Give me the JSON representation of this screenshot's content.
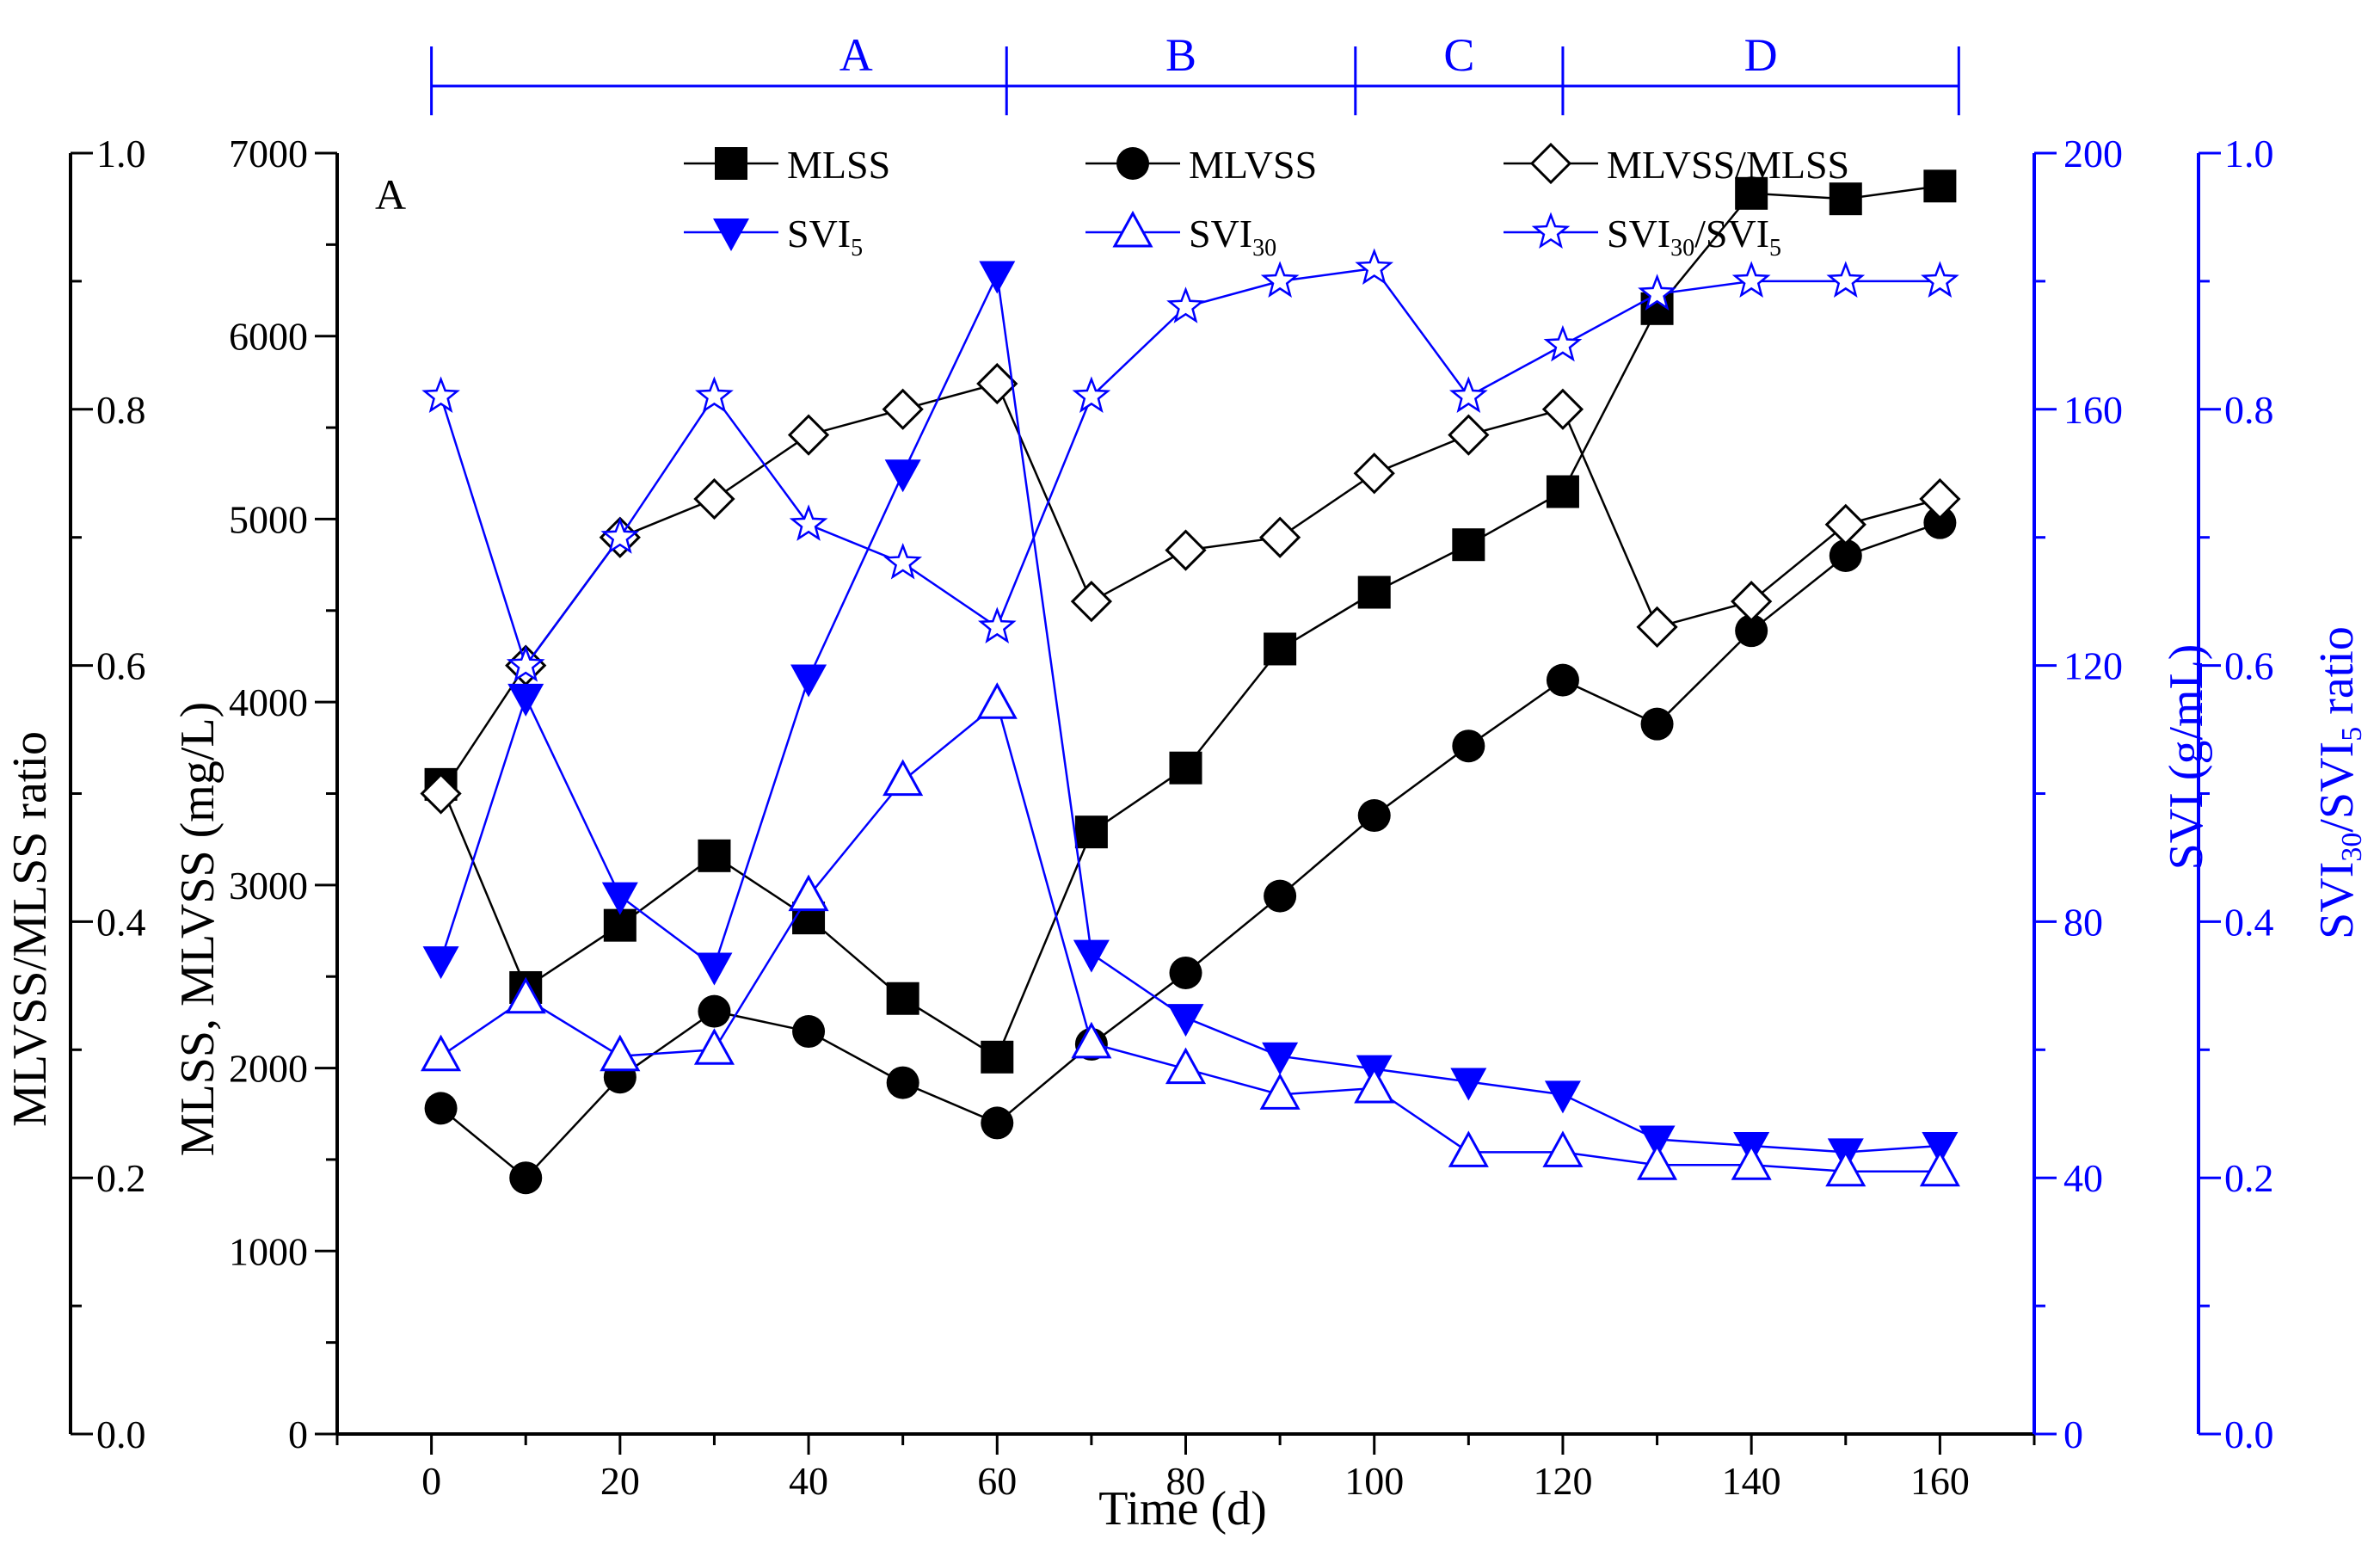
{
  "chart_data": {
    "type": "line",
    "panel_label": "A",
    "xlabel": "Time (d)",
    "xlim": [
      -10,
      170
    ],
    "x_ticks": [
      0,
      20,
      40,
      60,
      80,
      100,
      120,
      140,
      160
    ],
    "axes": {
      "left_inner": {
        "label": "MLSS, MLVSS (mg/L)",
        "ylim": [
          0,
          7000
        ],
        "ticks": [
          0,
          1000,
          2000,
          3000,
          4000,
          5000,
          6000,
          7000
        ],
        "color": "#000000"
      },
      "left_outer": {
        "label": "MLVSS/MLSS ratio",
        "ylim": [
          0.0,
          1.0
        ],
        "ticks": [
          "0.0",
          "0.2",
          "0.4",
          "0.6",
          "0.8",
          "1.0"
        ],
        "color": "#000000"
      },
      "right_inner": {
        "label": "SVI (g/mL)",
        "ylim": [
          0,
          200
        ],
        "ticks": [
          0,
          40,
          80,
          120,
          160,
          200
        ],
        "color": "#0000ff"
      },
      "right_outer": {
        "label_main": "SVI",
        "label_sub1": "30",
        "label_mid": "/SVI",
        "label_sub2": "5",
        "label_tail": " ratio",
        "ylim": [
          0.0,
          1.0
        ],
        "ticks": [
          "0.0",
          "0.2",
          "0.4",
          "0.6",
          "0.8",
          "1.0"
        ],
        "color": "#0000ff"
      }
    },
    "phases": [
      {
        "label": "A",
        "start": 0,
        "end": 61
      },
      {
        "label": "B",
        "start": 61,
        "end": 98
      },
      {
        "label": "C",
        "start": 98,
        "end": 120
      },
      {
        "label": "D",
        "start": 120,
        "end": 162
      }
    ],
    "x": [
      1,
      10,
      20,
      30,
      40,
      50,
      60,
      70,
      80,
      90,
      100,
      110,
      120,
      130,
      140,
      150,
      160
    ],
    "series": [
      {
        "name": "MLSS",
        "axis": "left_inner",
        "color": "#000000",
        "marker": "square-filled",
        "values": [
          3550,
          2440,
          2780,
          3160,
          2820,
          2380,
          2060,
          3290,
          3640,
          4290,
          4600,
          4860,
          5150,
          6150,
          6780,
          6750,
          6820
        ]
      },
      {
        "name": "MLVSS",
        "axis": "left_inner",
        "color": "#000000",
        "marker": "circle-filled",
        "values": [
          1780,
          1400,
          1950,
          2310,
          2200,
          1920,
          1700,
          2130,
          2520,
          2940,
          3380,
          3760,
          4120,
          3880,
          4390,
          4800,
          4980
        ]
      },
      {
        "name": "MLVSS/MLSS",
        "axis": "left_outer",
        "color": "#000000",
        "marker": "diamond-open",
        "values": [
          0.5,
          0.6,
          0.7,
          0.73,
          0.78,
          0.8,
          0.82,
          0.65,
          0.69,
          0.7,
          0.75,
          0.78,
          0.8,
          0.63,
          0.65,
          0.71,
          0.73
        ]
      },
      {
        "name": "SVI",
        "sub": "5",
        "axis": "right_inner",
        "color": "#0000ff",
        "marker": "triangle-down-filled",
        "values": [
          74,
          115,
          84,
          73,
          118,
          150,
          181,
          75,
          65,
          59,
          57,
          55,
          53,
          46,
          45,
          44,
          45
        ]
      },
      {
        "name": "SVI",
        "sub": "30",
        "axis": "right_inner",
        "color": "#0000ff",
        "marker": "triangle-up-open",
        "values": [
          59,
          68,
          59,
          60,
          84,
          102,
          114,
          61,
          57,
          53,
          54,
          44,
          44,
          42,
          42,
          41,
          41
        ]
      },
      {
        "name": "SVI",
        "sub": "30",
        "mid": "/SVI",
        "sub2": "5",
        "axis": "right_outer",
        "color": "#0000ff",
        "marker": "star-open",
        "values": [
          0.81,
          0.6,
          0.7,
          0.81,
          0.71,
          0.68,
          0.63,
          0.81,
          0.88,
          0.9,
          0.91,
          0.81,
          0.85,
          0.89,
          0.9,
          0.9,
          0.9
        ]
      }
    ]
  }
}
